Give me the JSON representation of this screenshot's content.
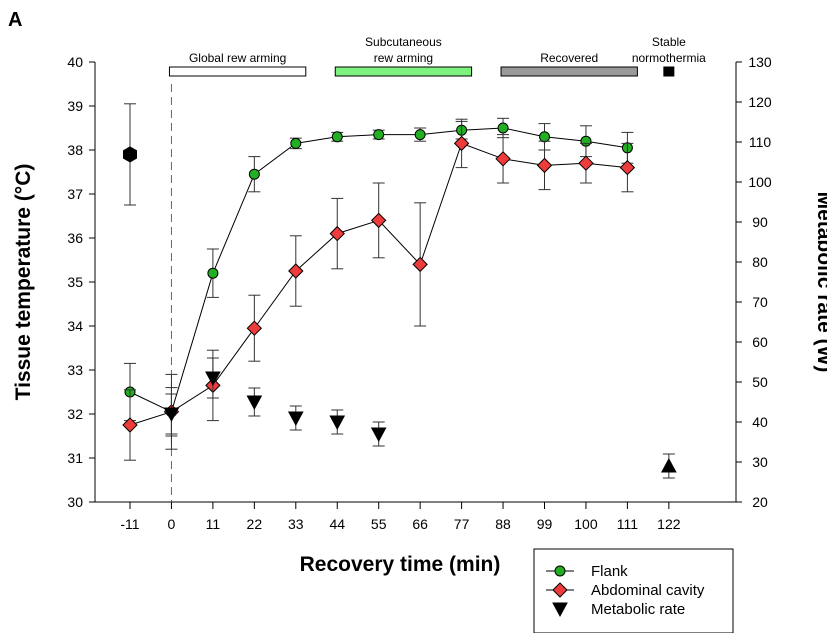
{
  "colors": {
    "flank": "#22b022",
    "abdominal": "#ee3b3b",
    "metabolic": "#000000",
    "global": "#ffffff",
    "subcutaneous": "#7ef27e",
    "recovered": "#9a9a9a",
    "stable": "#000000"
  },
  "chart_data": {
    "type": "line",
    "panel_label": "A",
    "xlabel": "Recovery time (min)",
    "ylabel_left": "Tissue temperature (°C)",
    "ylabel_right": "Metabolic rate (W)",
    "x_ticks": [
      "-11",
      "0",
      "11",
      "22",
      "33",
      "44",
      "55",
      "66",
      "77",
      "88",
      "99",
      "100",
      "111",
      "122"
    ],
    "ylim_left": [
      30,
      40
    ],
    "y_ticks_left": [
      "30",
      "31",
      "32",
      "33",
      "34",
      "35",
      "36",
      "37",
      "38",
      "39",
      "40"
    ],
    "ylim_right": [
      20,
      130
    ],
    "y_ticks_right": [
      "20",
      "30",
      "40",
      "50",
      "60",
      "70",
      "80",
      "90",
      "100",
      "110",
      "120",
      "130"
    ],
    "phases": [
      {
        "label_lines": [
          "Global  rew arming"
        ],
        "start": 0,
        "end": 3,
        "color_key": "global"
      },
      {
        "label_lines": [
          "Subcutaneous",
          "rew arming"
        ],
        "start": 4,
        "end": 7,
        "color_key": "subcutaneous"
      },
      {
        "label_lines": [
          "Recovered"
        ],
        "start": 8,
        "end": 11,
        "color_key": "recovered"
      },
      {
        "label_lines": [
          "Stable",
          "normothermia"
        ],
        "start": 12,
        "end": 12,
        "color_key": "stable"
      }
    ],
    "baseline": {
      "x_index": 0,
      "temperature": 37.9,
      "err_low": 36.75,
      "err_high": 39.05
    },
    "series": [
      {
        "name": "Flank",
        "axis": "left",
        "marker": "circle",
        "color_key": "flank",
        "x_index": [
          0,
          1,
          2,
          3,
          4,
          5,
          6,
          7,
          8,
          9,
          10,
          11,
          12
        ],
        "values": [
          32.5,
          32.05,
          35.2,
          37.45,
          38.15,
          38.3,
          38.35,
          38.35,
          38.45,
          38.5,
          38.3,
          38.2,
          38.05
        ],
        "err": [
          0.65,
          0.55,
          0.55,
          0.4,
          0.12,
          0.1,
          0.1,
          0.15,
          0.2,
          0.22,
          0.3,
          0.35,
          0.35
        ]
      },
      {
        "name": "Abdominal cavity",
        "axis": "left",
        "marker": "diamond",
        "color_key": "abdominal",
        "x_index": [
          0,
          1,
          2,
          3,
          4,
          5,
          6,
          7,
          8,
          9,
          10,
          11,
          12
        ],
        "values": [
          31.75,
          32.05,
          32.65,
          33.95,
          35.25,
          36.1,
          36.4,
          35.4,
          38.15,
          37.8,
          37.65,
          37.7,
          37.6
        ],
        "err": [
          0.8,
          0.85,
          0.8,
          0.75,
          0.8,
          0.8,
          0.85,
          1.4,
          0.55,
          0.55,
          0.55,
          0.45,
          0.55
        ]
      },
      {
        "name": "Metabolic rate",
        "axis": "right",
        "marker": "triangle-down",
        "color_key": "metabolic",
        "x_index": [
          1,
          2,
          3,
          4,
          5,
          6
        ],
        "values": [
          42,
          51,
          45,
          41,
          40,
          37
        ],
        "err": [
          5,
          5,
          3.5,
          3,
          3,
          3
        ]
      },
      {
        "name": "Metabolic rate (stable)",
        "axis": "right",
        "marker": "triangle-up",
        "color_key": "metabolic",
        "in_legend": false,
        "x_index": [
          13
        ],
        "values": [
          29
        ],
        "err": [
          3
        ]
      }
    ],
    "legend": {
      "position": "bottom-right",
      "entries": [
        {
          "label": "Flank",
          "marker": "circle",
          "color_key": "flank"
        },
        {
          "label": "Abdominal cavity",
          "marker": "diamond",
          "color_key": "abdominal"
        },
        {
          "label": "Metabolic rate",
          "marker": "triangle-down",
          "color_key": "metabolic"
        }
      ]
    },
    "grid": false
  }
}
